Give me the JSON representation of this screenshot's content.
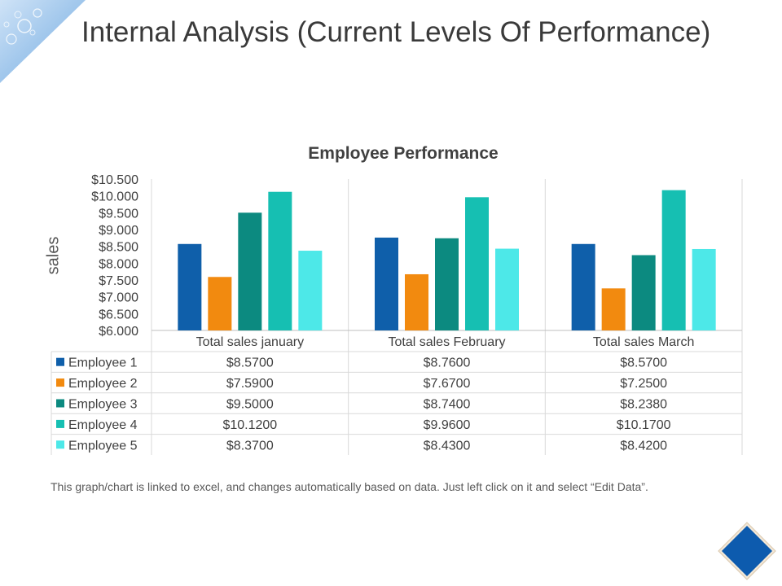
{
  "slide": {
    "title": "Internal Analysis (Current Levels Of Performance)",
    "footnote": "This graph/chart is linked to excel, and changes automatically based on data. Just left click on it and select “Edit Data”."
  },
  "chart_data": {
    "type": "bar",
    "title": "Employee Performance",
    "xlabel": "",
    "ylabel": "sales",
    "ylim": [
      6.0,
      10.5
    ],
    "yticks": [
      6.0,
      6.5,
      7.0,
      7.5,
      8.0,
      8.5,
      9.0,
      9.5,
      10.0,
      10.5
    ],
    "ytick_labels": [
      "$6.000",
      "$6.500",
      "$7.000",
      "$7.500",
      "$8.000",
      "$8.500",
      "$9.000",
      "$9.500",
      "$10.000",
      "$10.500"
    ],
    "categories": [
      "Total sales january",
      "Total sales February",
      "Total sales March"
    ],
    "series": [
      {
        "name": "Employee 1",
        "color": "#0F5FAA",
        "values": [
          8.57,
          8.76,
          8.57
        ],
        "labels": [
          "$8.5700",
          "$8.7600",
          "$8.5700"
        ]
      },
      {
        "name": "Employee 2",
        "color": "#F28A0F",
        "values": [
          7.59,
          7.67,
          7.25
        ],
        "labels": [
          "$7.5900",
          "$7.6700",
          "$7.2500"
        ]
      },
      {
        "name": "Employee 3",
        "color": "#0C8A80",
        "values": [
          9.5,
          8.74,
          8.238
        ],
        "labels": [
          "$9.5000",
          "$8.7400",
          "$8.2380"
        ]
      },
      {
        "name": "Employee 4",
        "color": "#16BFB2",
        "values": [
          10.12,
          9.96,
          10.17
        ],
        "labels": [
          "$10.1200",
          "$9.9600",
          "$10.1700"
        ]
      },
      {
        "name": "Employee 5",
        "color": "#4DE8E8",
        "values": [
          8.37,
          8.43,
          8.42
        ],
        "labels": [
          "$8.3700",
          "$8.4300",
          "$8.4200"
        ]
      }
    ],
    "grid": true,
    "legend": "data-table-below"
  }
}
